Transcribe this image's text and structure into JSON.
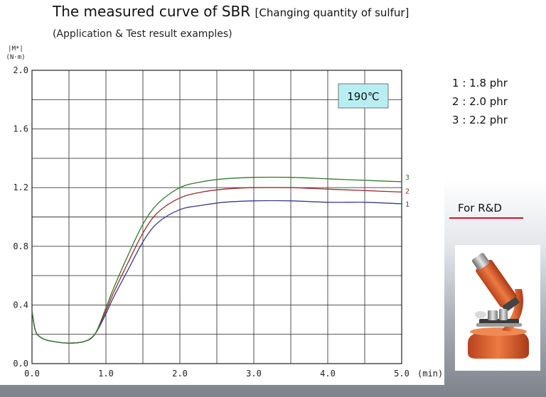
{
  "header": {
    "title": "The measured curve of SBR",
    "title_suffix": "[Changing quantity of sulfur]",
    "subtitle": "(Application & Test result examples)"
  },
  "legend": {
    "items": [
      {
        "num": "1",
        "value": "1.8 phr"
      },
      {
        "num": "2",
        "value": "2.0 phr"
      },
      {
        "num": "3",
        "value": "2.2 phr"
      }
    ]
  },
  "rd": {
    "label": "For R&D",
    "underline_color": "#e0101c"
  },
  "chart_data": {
    "type": "line",
    "ylabel_line1": "|M*|",
    "ylabel_line2": "(N·m)",
    "xlabel": "(min)",
    "xlim": [
      0,
      5
    ],
    "ylim": [
      0,
      2
    ],
    "x_ticks": [
      "0.0",
      "1.0",
      "2.0",
      "3.0",
      "4.0",
      "5.0"
    ],
    "x_tick_values": [
      0,
      1,
      2,
      3,
      4,
      5
    ],
    "y_ticks": [
      "0.0",
      "0.4",
      "0.8",
      "1.2",
      "1.6",
      "2.0"
    ],
    "y_tick_values": [
      0,
      0.4,
      0.8,
      1.2,
      1.6,
      2.0
    ],
    "grid": true,
    "annotation": "190℃",
    "annotation_bg": "#b8eef2",
    "series": [
      {
        "name": "1",
        "color": "#3a3a8a",
        "x": [
          0,
          0.05,
          0.15,
          0.3,
          0.5,
          0.7,
          0.85,
          1.0,
          1.1,
          1.3,
          1.5,
          1.7,
          2.0,
          2.3,
          2.6,
          3.0,
          3.5,
          4.0,
          4.5,
          5.0
        ],
        "y": [
          0.36,
          0.22,
          0.17,
          0.15,
          0.14,
          0.15,
          0.2,
          0.34,
          0.45,
          0.64,
          0.83,
          0.96,
          1.05,
          1.08,
          1.1,
          1.11,
          1.11,
          1.1,
          1.1,
          1.09
        ]
      },
      {
        "name": "2",
        "color": "#a02828",
        "x": [
          0,
          0.05,
          0.15,
          0.3,
          0.5,
          0.7,
          0.85,
          1.0,
          1.1,
          1.3,
          1.5,
          1.7,
          2.0,
          2.3,
          2.6,
          3.0,
          3.5,
          4.0,
          4.5,
          5.0
        ],
        "y": [
          0.36,
          0.22,
          0.17,
          0.15,
          0.14,
          0.15,
          0.2,
          0.36,
          0.48,
          0.69,
          0.89,
          1.03,
          1.13,
          1.17,
          1.19,
          1.2,
          1.2,
          1.19,
          1.18,
          1.17
        ]
      },
      {
        "name": "3",
        "color": "#2e7a2e",
        "x": [
          0,
          0.05,
          0.15,
          0.3,
          0.5,
          0.7,
          0.85,
          1.0,
          1.1,
          1.3,
          1.5,
          1.7,
          2.0,
          2.3,
          2.6,
          3.0,
          3.5,
          4.0,
          4.5,
          5.0
        ],
        "y": [
          0.36,
          0.22,
          0.17,
          0.15,
          0.14,
          0.15,
          0.2,
          0.38,
          0.51,
          0.74,
          0.95,
          1.09,
          1.2,
          1.24,
          1.26,
          1.27,
          1.27,
          1.26,
          1.25,
          1.24
        ]
      }
    ]
  }
}
